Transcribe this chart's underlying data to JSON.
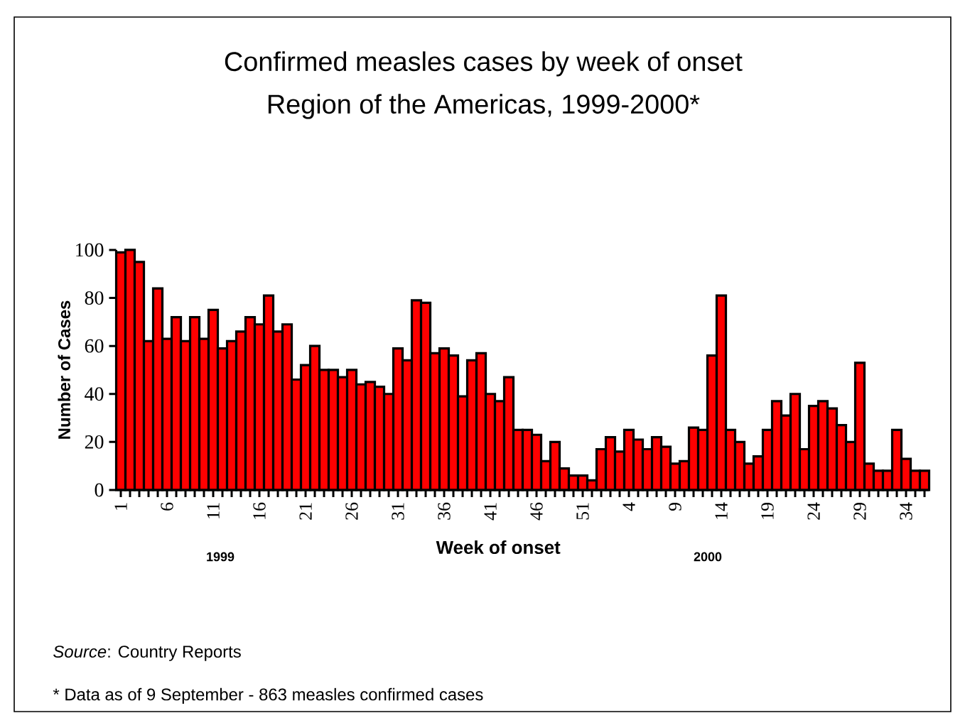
{
  "chart_data": {
    "type": "bar",
    "title": "Confirmed measles cases by week of onset",
    "subtitle": "Region of the Americas, 1999-2000*",
    "xlabel": "Week of onset",
    "ylabel": "Number of Cases",
    "categories": [
      "1",
      null,
      null,
      null,
      null,
      "6",
      null,
      null,
      null,
      null,
      "11",
      null,
      null,
      null,
      null,
      "16",
      null,
      null,
      null,
      null,
      "21",
      null,
      null,
      null,
      null,
      "26",
      null,
      null,
      null,
      null,
      "31",
      null,
      null,
      null,
      null,
      "36",
      null,
      null,
      null,
      null,
      "41",
      null,
      null,
      null,
      null,
      "46",
      null,
      null,
      null,
      null,
      "51",
      null,
      null,
      null,
      null,
      "4",
      null,
      null,
      null,
      null,
      "9",
      null,
      null,
      null,
      null,
      "14",
      null,
      null,
      null,
      null,
      "19",
      null,
      null,
      null,
      null,
      "24",
      null,
      null,
      null,
      null,
      "29",
      null,
      null,
      null,
      null,
      "34",
      null,
      null
    ],
    "values": [
      99,
      100,
      95,
      62,
      84,
      63,
      72,
      62,
      72,
      63,
      75,
      59,
      62,
      66,
      72,
      69,
      81,
      66,
      69,
      46,
      52,
      60,
      50,
      50,
      47,
      50,
      44,
      45,
      43,
      40,
      59,
      54,
      79,
      78,
      57,
      59,
      56,
      39,
      54,
      57,
      40,
      37,
      47,
      25,
      25,
      23,
      12,
      20,
      9,
      6,
      6,
      4,
      17,
      22,
      16,
      25,
      21,
      17,
      22,
      18,
      11,
      12,
      26,
      25,
      56,
      81,
      25,
      20,
      11,
      14,
      25,
      37,
      31,
      40,
      17,
      35,
      37,
      34,
      27,
      20,
      53,
      11,
      8,
      8,
      25,
      13,
      8,
      8
    ],
    "color": "#ff0000",
    "ylim": [
      0,
      100
    ],
    "yticks": [
      0,
      20,
      40,
      60,
      80,
      100
    ],
    "annotations": [
      "1999",
      "2000",
      "*Source*: Country Reports",
      "* Data as of 9 September - 863 measles confirmed cases"
    ]
  }
}
